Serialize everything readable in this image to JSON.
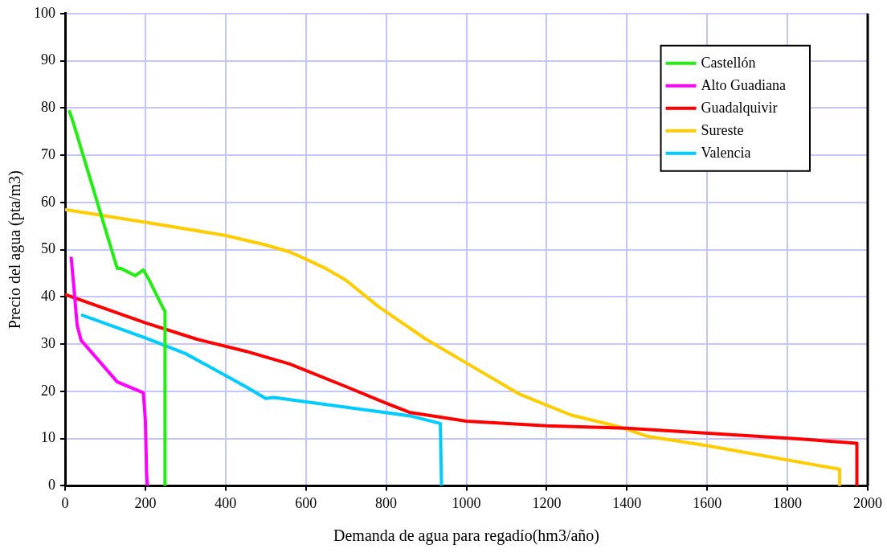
{
  "chart_data": {
    "type": "line",
    "xlabel": "Demanda de agua para regadío(hm3/año)",
    "ylabel": "Precio del agua (pta/m3)",
    "xlim": [
      0,
      2000
    ],
    "xticks": [
      0,
      200,
      400,
      600,
      800,
      1000,
      1200,
      1400,
      1600,
      1800,
      2000
    ],
    "ylim": [
      0,
      100
    ],
    "yticks": [
      0,
      10,
      20,
      30,
      40,
      50,
      60,
      70,
      80,
      90,
      100
    ],
    "grid": true,
    "legend": "top right",
    "marker": "none",
    "line_style": "solid",
    "series": [
      {
        "name": "Castellón",
        "color": "#22ee11",
        "x": [
          10,
          20,
          130,
          140,
          175,
          195,
          210,
          245,
          249,
          249
        ],
        "values": [
          79.5,
          77,
          46,
          46,
          44.5,
          45.7,
          43.5,
          37.5,
          37,
          0
        ]
      },
      {
        "name": "Alto Guadiana",
        "color": "#ff00ff",
        "x": [
          15,
          22,
          30,
          40,
          130,
          195,
          200,
          203,
          205
        ],
        "values": [
          48.5,
          42,
          34,
          30.8,
          22,
          19.7,
          14,
          3,
          0
        ]
      },
      {
        "name": "Guadalquivir",
        "color": "#ff0000",
        "x": [
          0,
          200,
          330,
          450,
          560,
          700,
          800,
          860,
          900,
          1000,
          1200,
          1400,
          1820,
          1973,
          1973
        ],
        "values": [
          40.5,
          34.5,
          31,
          28.5,
          25.8,
          21,
          17.5,
          15.5,
          15,
          13.7,
          12.7,
          12.2,
          10,
          9,
          0
        ]
      },
      {
        "name": "Sureste",
        "color": "#ffcc00",
        "x": [
          0,
          200,
          400,
          500,
          560,
          600,
          650,
          700,
          780,
          900,
          1000,
          1130,
          1260,
          1380,
          1450,
          1600,
          1930,
          1930
        ],
        "values": [
          58.5,
          55.8,
          53,
          51,
          49.5,
          48,
          46,
          43.5,
          38,
          31,
          26,
          19.5,
          15,
          12.5,
          10.5,
          8.5,
          3.5,
          0
        ]
      },
      {
        "name": "Valencia",
        "color": "#00ccff",
        "x": [
          40,
          200,
          300,
          450,
          500,
          520,
          860,
          935,
          938
        ],
        "values": [
          36.2,
          31.3,
          28,
          21,
          18.5,
          18.7,
          14.8,
          13.2,
          0
        ]
      }
    ]
  }
}
